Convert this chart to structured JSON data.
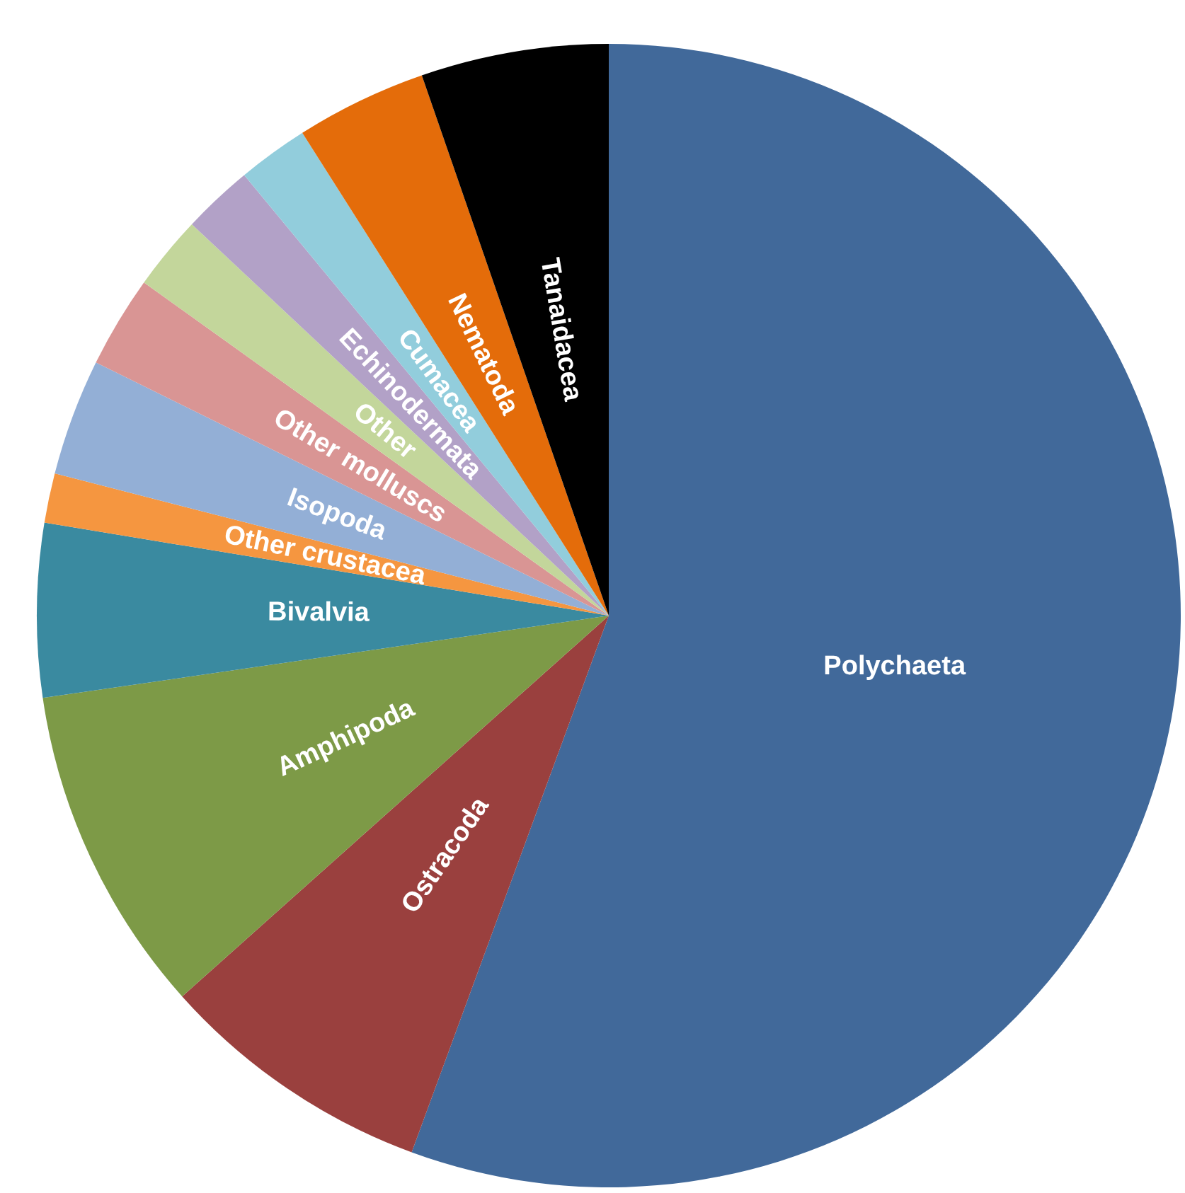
{
  "chart_data": {
    "type": "pie",
    "categories": [
      "Polychaeta",
      "Ostracoda",
      "Amphipoda",
      "Bivalvia",
      "Other crustacea",
      "Isopoda",
      "Other molluscs",
      "Other",
      "Echinodermata",
      "Cumacea",
      "Nematoda",
      "Tanaidacea"
    ],
    "values": [
      55.6,
      7.8,
      9.3,
      4.9,
      1.4,
      3.3,
      2.6,
      2.1,
      2.0,
      2.0,
      3.7,
      5.3
    ],
    "colors": [
      "#41699a",
      "#9a403e",
      "#7d9a47",
      "#3a8aa0",
      "#f59640",
      "#93afd6",
      "#d99594",
      "#c3d69b",
      "#b2a1c7",
      "#92cddc",
      "#e46c0a",
      "#000000"
    ],
    "legend": false
  }
}
